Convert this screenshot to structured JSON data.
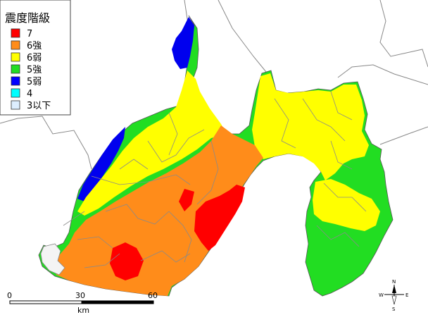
{
  "legend": {
    "title": "震度階級",
    "items": [
      {
        "label": "7",
        "color": "#ff0000"
      },
      {
        "label": "6強",
        "color": "#ff8c1a"
      },
      {
        "label": "6弱",
        "color": "#ffff00"
      },
      {
        "label": "5強",
        "color": "#22dd22"
      },
      {
        "label": "5弱",
        "color": "#0000ff"
      },
      {
        "label": "4",
        "color": "#00ffff"
      },
      {
        "label": "3以下",
        "color": "#ddeeff"
      }
    ]
  },
  "scale_bar": {
    "ticks": [
      "0",
      "30",
      "60"
    ],
    "unit": "km"
  },
  "compass": {
    "n": "N",
    "s": "S",
    "e": "E",
    "w": "W"
  }
}
